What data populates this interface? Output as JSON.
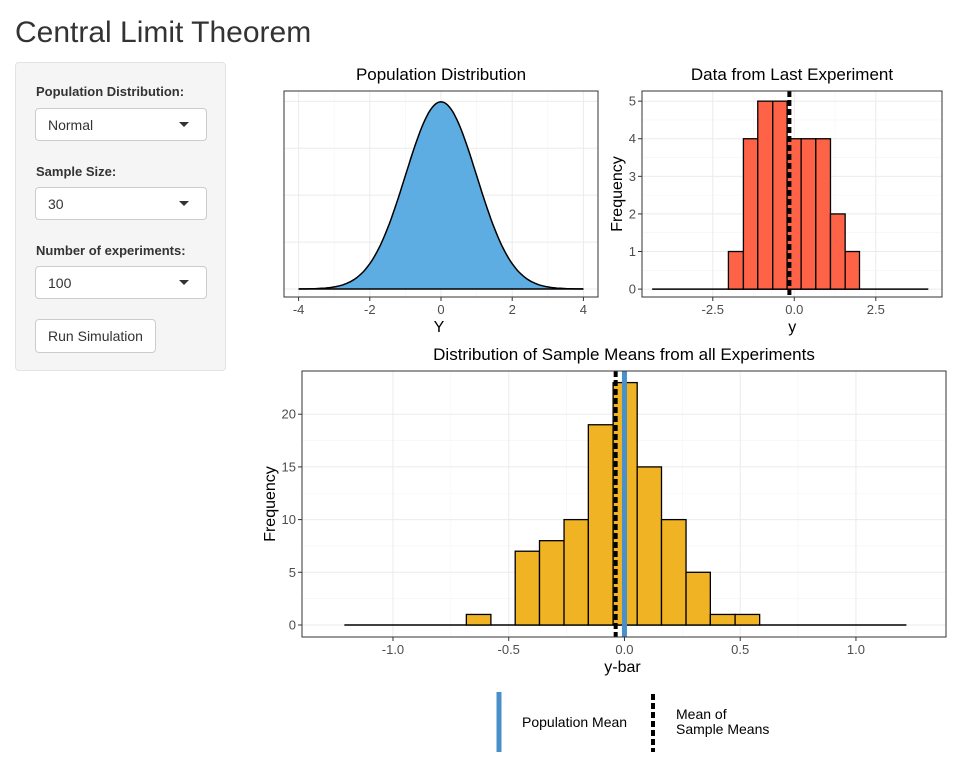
{
  "page_title": "Central Limit Theorem",
  "sidebar": {
    "population_label": "Population Distribution:",
    "population_value": "Normal",
    "sample_size_label": "Sample Size:",
    "sample_size_value": "30",
    "experiments_label": "Number of experiments:",
    "experiments_value": "100",
    "run_button": "Run Simulation"
  },
  "chart_data": [
    {
      "type": "area",
      "title": "Population Distribution",
      "xlabel": "Y",
      "ylabel": "",
      "curve": "normal density, mean 0, sd 1",
      "mean": 0,
      "sd": 1,
      "x_range": [
        -4,
        4
      ],
      "xlim": [
        -4.41,
        4.41
      ],
      "ylim": [
        -0.017,
        0.422
      ],
      "xticks": [
        "-4",
        "-2",
        "0",
        "2",
        "4"
      ],
      "xtick_values": [
        -4,
        -2,
        0,
        2,
        4
      ],
      "fill": "#5dade2",
      "grid": true
    },
    {
      "type": "bar",
      "title": "Data from Last Experiment",
      "xlabel": "y",
      "ylabel": "Frequency",
      "bin_edges": [
        -2.02,
        -1.56,
        -1.12,
        -0.66,
        -0.22,
        0.21,
        0.66,
        1.11,
        1.56,
        2.0
      ],
      "counts": [
        1,
        4,
        5,
        5,
        4,
        4,
        4,
        2,
        1
      ],
      "zero_line": [
        -4.36,
        4.11
      ],
      "mean_line": -0.15,
      "xlim": [
        -4.67,
        4.53
      ],
      "ylim": [
        -0.21,
        5.27
      ],
      "xticks": [
        "-2.5",
        "0.0",
        "2.5"
      ],
      "xtick_values": [
        -2.5,
        0,
        2.5
      ],
      "yticks": [
        "0",
        "1",
        "2",
        "3",
        "4",
        "5"
      ],
      "ytick_values": [
        0,
        1,
        2,
        3,
        4,
        5
      ],
      "fill": "#ff6347",
      "grid": true
    },
    {
      "type": "bar",
      "title": "Distribution of Sample Means from all Experiments",
      "xlabel": "y-bar",
      "ylabel": "Frequency",
      "bin_edges": [
        -0.683,
        -0.577,
        -0.472,
        -0.367,
        -0.261,
        -0.156,
        -0.049,
        0.055,
        0.16,
        0.266,
        0.371,
        0.478,
        0.584
      ],
      "counts": [
        1,
        0,
        7,
        8,
        10,
        19,
        23,
        15,
        10,
        5,
        1,
        1
      ],
      "zero_line": [
        -1.21,
        1.218
      ],
      "mean_line": -0.038,
      "population_mean": 0,
      "xlim": [
        -1.393,
        1.389
      ],
      "ylim": [
        -1.14,
        24.1
      ],
      "xticks": [
        "-1.0",
        "-0.5",
        "0.0",
        "0.5",
        "1.0"
      ],
      "xtick_values": [
        -1,
        -0.5,
        0,
        0.5,
        1
      ],
      "yticks": [
        "0",
        "5",
        "10",
        "15",
        "20"
      ],
      "ytick_values": [
        0,
        5,
        10,
        15,
        20
      ],
      "fill": "#f0b323",
      "population_mean_color": "#4a8fc7",
      "grid": true,
      "legend": {
        "placement": "bottom",
        "items": [
          {
            "label": "Population Mean",
            "style": "solid",
            "color": "#4a8fc7"
          },
          {
            "label_lines": [
              "Mean of",
              "Sample Means"
            ],
            "style": "dashed",
            "color": "#000000"
          }
        ]
      }
    }
  ]
}
